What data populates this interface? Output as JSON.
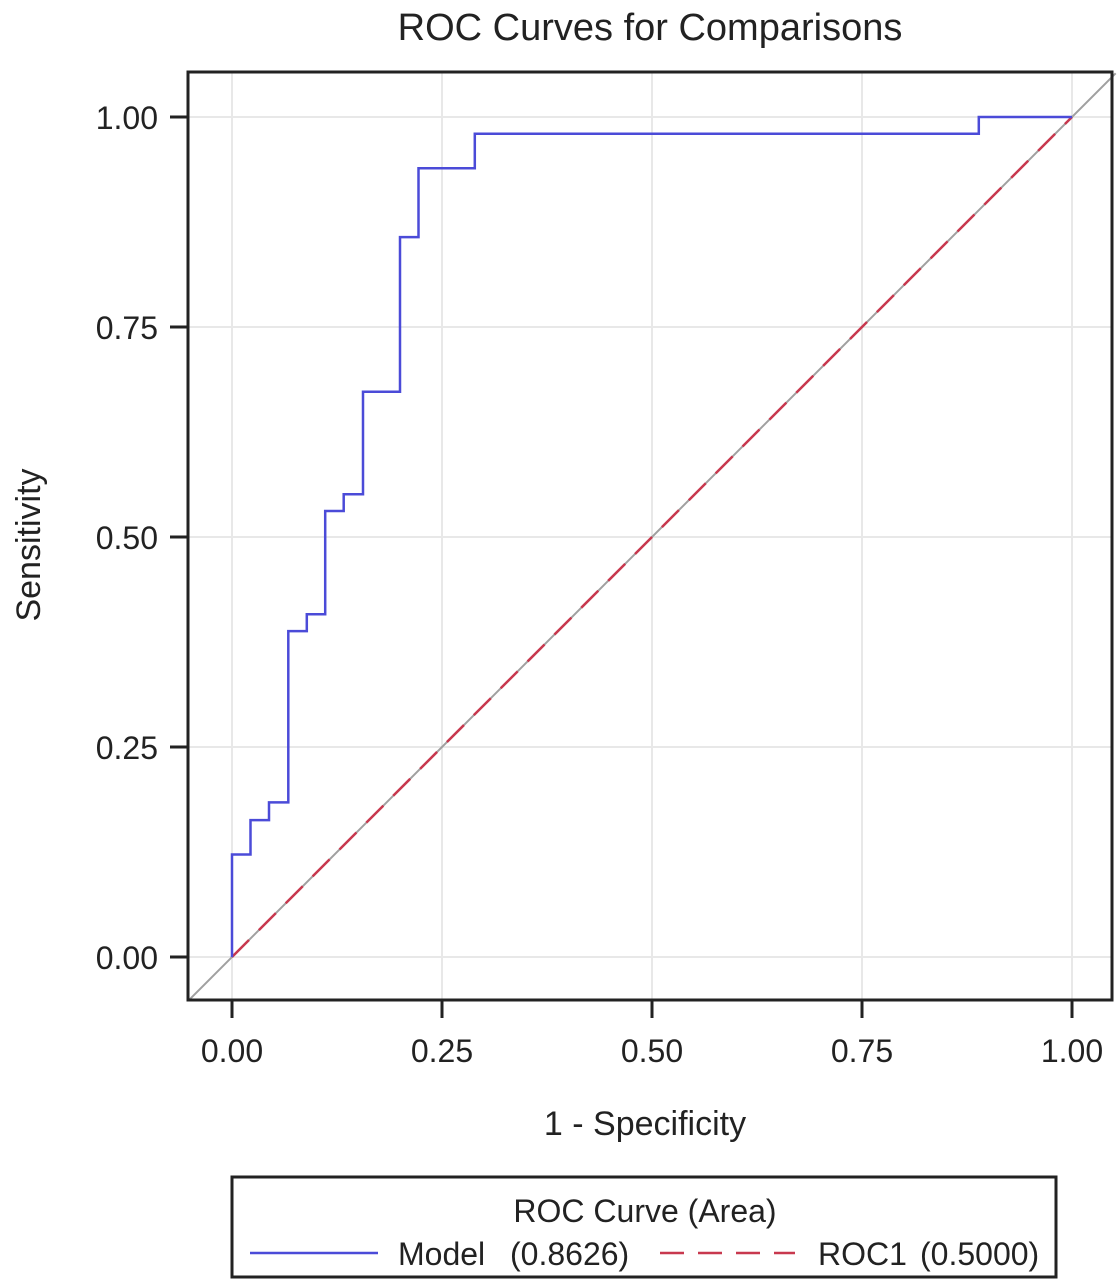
{
  "chart_data": {
    "type": "line",
    "title": "ROC Curves for Comparisons",
    "xlabel": "1 - Specificity",
    "ylabel": "Sensitivity",
    "xlim": [
      0,
      1
    ],
    "ylim": [
      0,
      1
    ],
    "x_ticks": [
      "0.00",
      "0.25",
      "0.50",
      "0.75",
      "1.00"
    ],
    "y_ticks": [
      "0.00",
      "0.25",
      "0.50",
      "0.75",
      "1.00"
    ],
    "grid": true,
    "legend": {
      "title": "ROC Curve (Area)",
      "position": "bottom",
      "entries": [
        {
          "label": "Model",
          "value": "(0.8626)"
        },
        {
          "label": "ROC1",
          "value": "(0.5000)"
        }
      ]
    },
    "reference_line": {
      "x": [
        0,
        1
      ],
      "y": [
        0,
        1
      ],
      "color": "#a0a0a0"
    },
    "series": [
      {
        "name": "Model",
        "color": "#4b4bd8",
        "style": "solid",
        "x": [
          0,
          0,
          0.022,
          0.022,
          0.044,
          0.044,
          0.067,
          0.067,
          0.089,
          0.089,
          0.111,
          0.111,
          0.133,
          0.133,
          0.156,
          0.156,
          0.2,
          0.2,
          0.222,
          0.222,
          0.289,
          0.289,
          0.889,
          0.889,
          1.0
        ],
        "y": [
          0,
          0.122,
          0.122,
          0.163,
          0.163,
          0.184,
          0.184,
          0.388,
          0.388,
          0.408,
          0.408,
          0.531,
          0.531,
          0.551,
          0.551,
          0.673,
          0.673,
          0.857,
          0.857,
          0.939,
          0.939,
          0.98,
          0.98,
          1.0,
          1.0
        ]
      },
      {
        "name": "ROC1",
        "color": "#c8384e",
        "style": "dashed",
        "x": [
          0,
          1
        ],
        "y": [
          0,
          1
        ]
      }
    ]
  }
}
